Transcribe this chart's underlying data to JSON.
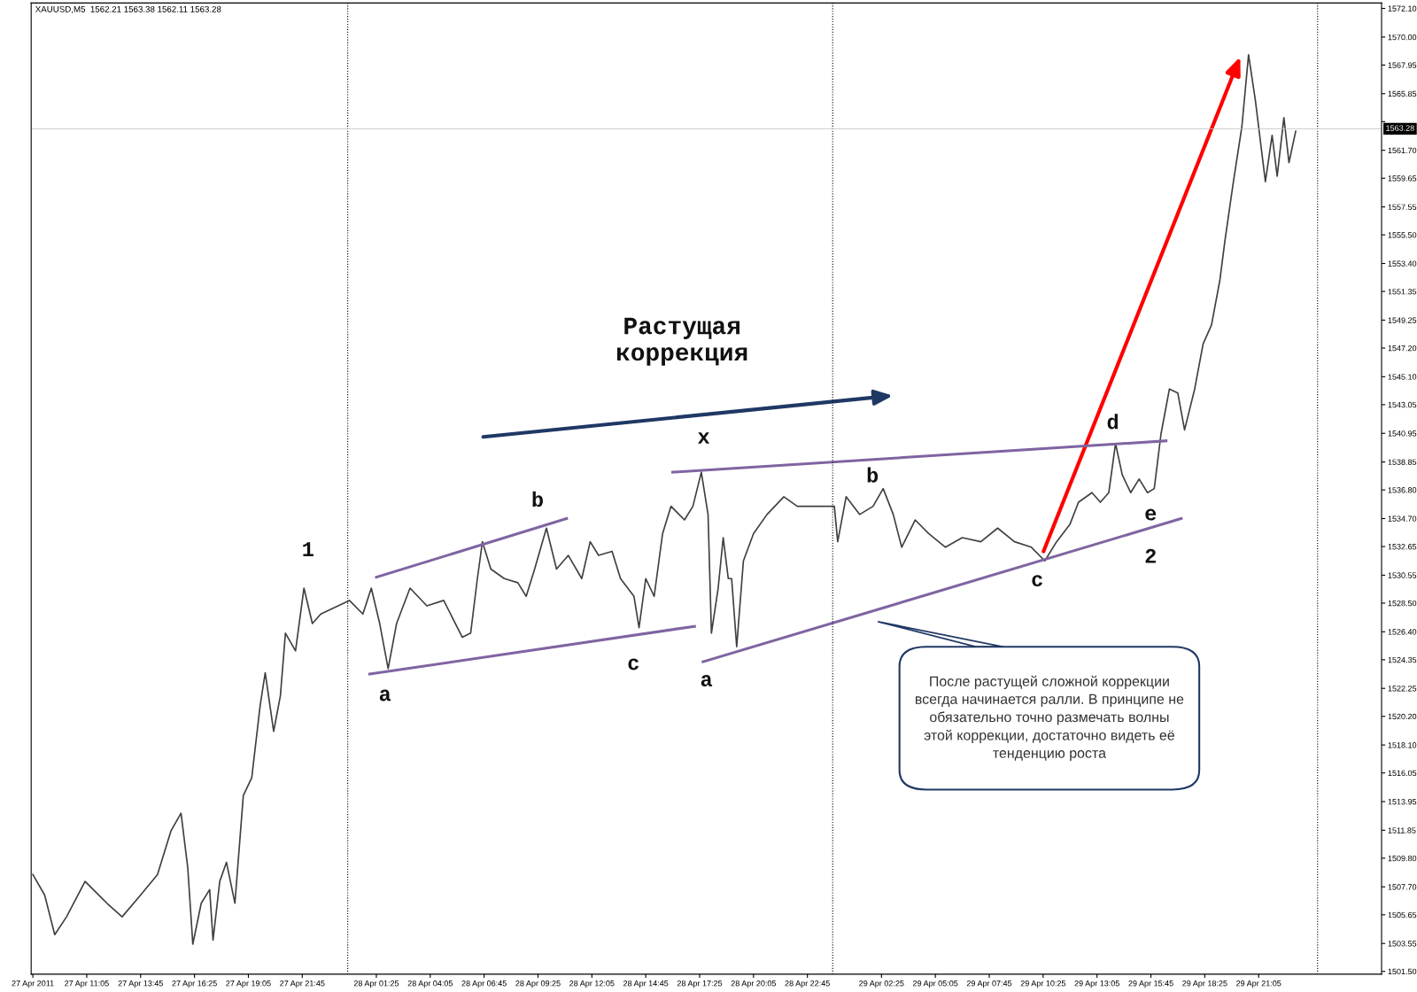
{
  "chart_data": {
    "type": "line",
    "title": "XAUUSD,M5  1562.21 1563.38 1562.11 1563.28",
    "x": [
      "2011-04-27T08:25",
      "2011-04-27T09:00",
      "2011-04-27T09:30",
      "2011-04-27T10:05",
      "2011-04-27T11:00",
      "2011-04-27T12:05",
      "2011-04-27T12:50",
      "2011-04-27T13:45",
      "2011-04-27T14:35",
      "2011-04-27T15:15",
      "2011-04-27T15:45",
      "2011-04-27T16:05",
      "2011-04-27T16:20",
      "2011-04-27T16:45",
      "2011-04-27T17:10",
      "2011-04-27T17:20",
      "2011-04-27T17:40",
      "2011-04-27T18:00",
      "2011-04-27T18:25",
      "2011-04-27T18:50",
      "2011-04-27T19:15",
      "2011-04-27T19:40",
      "2011-04-27T19:55",
      "2011-04-27T20:20",
      "2011-04-27T20:40",
      "2011-04-27T20:55",
      "2011-04-27T21:25",
      "2011-04-27T21:50",
      "2011-04-27T22:15",
      "2011-04-27T22:40",
      "2011-04-28T00:05",
      "2011-04-28T00:45",
      "2011-04-28T01:10",
      "2011-04-28T01:35",
      "2011-04-28T02:00",
      "2011-04-28T02:25",
      "2011-04-28T03:05",
      "2011-04-28T03:55",
      "2011-04-28T04:45",
      "2011-04-28T05:40",
      "2011-04-28T06:05",
      "2011-04-28T06:25",
      "2011-04-28T06:40",
      "2011-04-28T07:05",
      "2011-04-28T07:45",
      "2011-04-28T08:25",
      "2011-04-28T08:50",
      "2011-04-28T09:15",
      "2011-04-28T09:50",
      "2011-04-28T10:20",
      "2011-04-28T10:55",
      "2011-04-28T11:35",
      "2011-04-28T12:00",
      "2011-04-28T12:25",
      "2011-04-28T13:05",
      "2011-04-28T13:30",
      "2011-04-28T14:10",
      "2011-04-28T14:25",
      "2011-04-28T14:45",
      "2011-04-28T15:10",
      "2011-04-28T15:35",
      "2011-04-28T16:00",
      "2011-04-28T16:40",
      "2011-04-28T17:05",
      "2011-04-28T17:30",
      "2011-04-28T17:50",
      "2011-04-28T18:00",
      "2011-04-28T18:20",
      "2011-04-28T18:35",
      "2011-04-28T18:50",
      "2011-04-28T19:00",
      "2011-04-28T19:15",
      "2011-04-28T19:35",
      "2011-04-28T20:05",
      "2011-04-28T20:45",
      "2011-04-28T21:35",
      "2011-04-28T22:15",
      "2011-04-29T00:05",
      "2011-04-29T00:15",
      "2011-04-29T00:40",
      "2011-04-29T01:20",
      "2011-04-29T02:00",
      "2011-04-29T02:30",
      "2011-04-29T03:00",
      "2011-04-29T03:25",
      "2011-04-29T04:05",
      "2011-04-29T04:45",
      "2011-04-29T05:35",
      "2011-04-29T06:25",
      "2011-04-29T07:20",
      "2011-04-29T08:10",
      "2011-04-29T09:00",
      "2011-04-29T09:50",
      "2011-04-29T10:30",
      "2011-04-29T11:05",
      "2011-04-29T11:45",
      "2011-04-29T12:10",
      "2011-04-29T12:50",
      "2011-04-29T13:15",
      "2011-04-29T13:40",
      "2011-04-29T14:00",
      "2011-04-29T14:20",
      "2011-04-29T14:45",
      "2011-04-29T15:10",
      "2011-04-29T15:35",
      "2011-04-29T15:55",
      "2011-04-29T16:15",
      "2011-04-29T16:40",
      "2011-04-29T17:05",
      "2011-04-29T17:25",
      "2011-04-29T17:55",
      "2011-04-29T18:20",
      "2011-04-29T18:45",
      "2011-04-29T19:10",
      "2011-04-29T19:25",
      "2011-04-29T19:50",
      "2011-04-29T20:15",
      "2011-04-29T20:35",
      "2011-04-29T20:55",
      "2011-04-29T21:25",
      "2011-04-29T21:45",
      "2011-04-29T22:00",
      "2011-04-29T22:20",
      "2011-04-29T22:35",
      "2011-04-29T22:55"
    ],
    "series": [
      {
        "color": "#404040",
        "values": [
          1508.6,
          1507.1,
          1504.2,
          1505.5,
          1508.1,
          1506.5,
          1505.5,
          1507.1,
          1508.6,
          1511.8,
          1513.1,
          1509.1,
          1503.5,
          1506.5,
          1507.5,
          1503.8,
          1508.1,
          1509.5,
          1506.5,
          1514.4,
          1515.7,
          1521.0,
          1523.4,
          1519.1,
          1521.7,
          1526.3,
          1525.0,
          1529.6,
          1527.0,
          1527.7,
          1528.7,
          1527.7,
          1529.6,
          1527.0,
          1523.7,
          1527.0,
          1529.6,
          1528.3,
          1528.7,
          1526.0,
          1526.3,
          1530.3,
          1533.0,
          1531.0,
          1530.3,
          1530.0,
          1529.0,
          1531.0,
          1534.0,
          1531.0,
          1532.0,
          1530.3,
          1533.0,
          1532.0,
          1532.3,
          1530.3,
          1529.0,
          1526.7,
          1530.3,
          1529.0,
          1533.6,
          1535.6,
          1534.6,
          1535.6,
          1538.1,
          1535.0,
          1526.3,
          1529.6,
          1533.3,
          1530.3,
          1530.3,
          1525.3,
          1531.6,
          1533.6,
          1535.0,
          1536.3,
          1535.6,
          1535.6,
          1533.0,
          1536.3,
          1535.0,
          1535.6,
          1536.9,
          1535.0,
          1532.6,
          1534.6,
          1533.6,
          1532.6,
          1533.3,
          1533.0,
          1534.0,
          1533.0,
          1532.6,
          1531.6,
          1533.0,
          1534.3,
          1535.9,
          1536.6,
          1535.9,
          1536.6,
          1540.2,
          1537.9,
          1536.6,
          1537.6,
          1536.6,
          1536.9,
          1540.9,
          1544.2,
          1543.9,
          1541.2,
          1544.2,
          1547.5,
          1548.9,
          1552.2,
          1555.1,
          1559.4,
          1563.4,
          1568.7,
          1565.4,
          1559.4,
          1562.8,
          1559.8,
          1564.1,
          1560.8,
          1563.1
        ]
      },
      {
        "type": "line",
        "color": "#8064a2",
        "x": [
          "2011-04-28T01:25",
          "2011-04-28T10:50"
        ],
        "values": [
          1530.4,
          1534.7
        ]
      },
      {
        "type": "line",
        "color": "#8064a2",
        "x": [
          "2011-04-28T01:05",
          "2011-04-28T17:10"
        ],
        "values": [
          1523.3,
          1526.8
        ]
      },
      {
        "type": "line",
        "color": "#8064a2",
        "x": [
          "2011-04-28T16:05",
          "2011-04-29T16:30"
        ],
        "values": [
          1538.1,
          1540.4
        ]
      },
      {
        "type": "line",
        "color": "#8064a2",
        "x": [
          "2011-04-28T17:35",
          "2011-04-29T17:15"
        ],
        "values": [
          1524.2,
          1534.7
        ]
      }
    ],
    "xlim": [
      "2011-04-27T08:20",
      "2011-04-30T03:10"
    ],
    "xticks": [
      {
        "value": "2011-04-27T08:25",
        "label": "27 Apr 2011"
      },
      {
        "value": "2011-04-27T11:05",
        "label": "27 Apr 11:05"
      },
      {
        "value": "2011-04-27T13:45",
        "label": "27 Apr 13:45"
      },
      {
        "value": "2011-04-27T16:25",
        "label": "27 Apr 16:25"
      },
      {
        "value": "2011-04-27T19:05",
        "label": "27 Apr 19:05"
      },
      {
        "value": "2011-04-27T21:45",
        "label": "27 Apr 21:45"
      },
      {
        "value": "2011-04-28T01:25",
        "label": "28 Apr 01:25"
      },
      {
        "value": "2011-04-28T04:05",
        "label": "28 Apr 04:05"
      },
      {
        "value": "2011-04-28T06:45",
        "label": "28 Apr 06:45"
      },
      {
        "value": "2011-04-28T09:25",
        "label": "28 Apr 09:25"
      },
      {
        "value": "2011-04-28T12:05",
        "label": "28 Apr 12:05"
      },
      {
        "value": "2011-04-28T14:45",
        "label": "28 Apr 14:45"
      },
      {
        "value": "2011-04-28T17:25",
        "label": "28 Apr 17:25"
      },
      {
        "value": "2011-04-28T20:05",
        "label": "28 Apr 20:05"
      },
      {
        "value": "2011-04-28T22:45",
        "label": "28 Apr 22:45"
      },
      {
        "value": "2011-04-29T02:25",
        "label": "29 Apr 02:25"
      },
      {
        "value": "2011-04-29T05:05",
        "label": "29 Apr 05:05"
      },
      {
        "value": "2011-04-29T07:45",
        "label": "29 Apr 07:45"
      },
      {
        "value": "2011-04-29T10:25",
        "label": "29 Apr 10:25"
      },
      {
        "value": "2011-04-29T13:05",
        "label": "29 Apr 13:05"
      },
      {
        "value": "2011-04-29T15:45",
        "label": "29 Apr 15:45"
      },
      {
        "value": "2011-04-29T18:25",
        "label": "29 Apr 18:25"
      },
      {
        "value": "2011-04-29T21:05",
        "label": "29 Apr 21:05"
      }
    ],
    "ylim": [
      1501.3,
      1572.5
    ],
    "yticks": [
      {
        "value": 1572.1,
        "label": "1572.10"
      },
      {
        "value": 1570.0,
        "label": "1570.00"
      },
      {
        "value": 1567.95,
        "label": "1567.95"
      },
      {
        "value": 1565.85,
        "label": "1565.85"
      },
      {
        "value": 1563.8,
        "label": null
      },
      {
        "value": 1561.7,
        "label": "1561.70"
      },
      {
        "value": 1559.65,
        "label": "1559.65"
      },
      {
        "value": 1557.55,
        "label": "1557.55"
      },
      {
        "value": 1555.5,
        "label": "1555.50"
      },
      {
        "value": 1553.4,
        "label": "1553.40"
      },
      {
        "value": 1551.35,
        "label": "1551.35"
      },
      {
        "value": 1549.25,
        "label": "1549.25"
      },
      {
        "value": 1547.2,
        "label": "1547.20"
      },
      {
        "value": 1545.1,
        "label": "1545.10"
      },
      {
        "value": 1543.05,
        "label": "1543.05"
      },
      {
        "value": 1540.95,
        "label": "1540.95"
      },
      {
        "value": 1538.85,
        "label": "1538.85"
      },
      {
        "value": 1536.8,
        "label": "1536.80"
      },
      {
        "value": 1534.7,
        "label": "1534.70"
      },
      {
        "value": 1532.65,
        "label": "1532.65"
      },
      {
        "value": 1530.55,
        "label": "1530.55"
      },
      {
        "value": 1528.5,
        "label": "1528.50"
      },
      {
        "value": 1526.4,
        "label": "1526.40"
      },
      {
        "value": 1524.35,
        "label": "1524.35"
      },
      {
        "value": 1522.25,
        "label": "1522.25"
      },
      {
        "value": 1520.2,
        "label": "1520.20"
      },
      {
        "value": 1518.1,
        "label": "1518.10"
      },
      {
        "value": 1516.05,
        "label": "1516.05"
      },
      {
        "value": 1513.95,
        "label": "1513.95"
      },
      {
        "value": 1511.85,
        "label": "1511.85"
      },
      {
        "value": 1509.8,
        "label": "1509.80"
      },
      {
        "value": 1507.7,
        "label": "1507.70"
      },
      {
        "value": 1505.65,
        "label": "1505.65"
      },
      {
        "value": 1503.55,
        "label": "1503.55"
      },
      {
        "value": 1501.5,
        "label": "1501.50"
      }
    ],
    "ref_lines": [
      {
        "axis": "x",
        "value": "2011-04-28T00:00",
        "line_style": "dotted",
        "color": "#000000"
      },
      {
        "axis": "x",
        "value": "2011-04-29T00:00",
        "line_style": "dotted",
        "color": "#000000"
      },
      {
        "axis": "x",
        "value": "2011-04-30T00:00",
        "line_style": "dotted",
        "color": "#000000"
      },
      {
        "axis": "y",
        "value": 1563.28,
        "label": "1563.28",
        "color": "#c0c0c0"
      }
    ],
    "annotations": [
      "1",
      "a",
      "b",
      "c",
      "x",
      "a",
      "b",
      "c",
      "d",
      "e",
      "2",
      "Растущая\nкоррекция",
      "После растущей сложной коррекции\nвсегда начинается ралли. В принципе не\nобязательно точно размечать волны\nэтой коррекции, достаточно видеть её\nтенденцию роста"
    ],
    "grid": false,
    "legend": false,
    "line_style": "solid",
    "marker": "none"
  }
}
